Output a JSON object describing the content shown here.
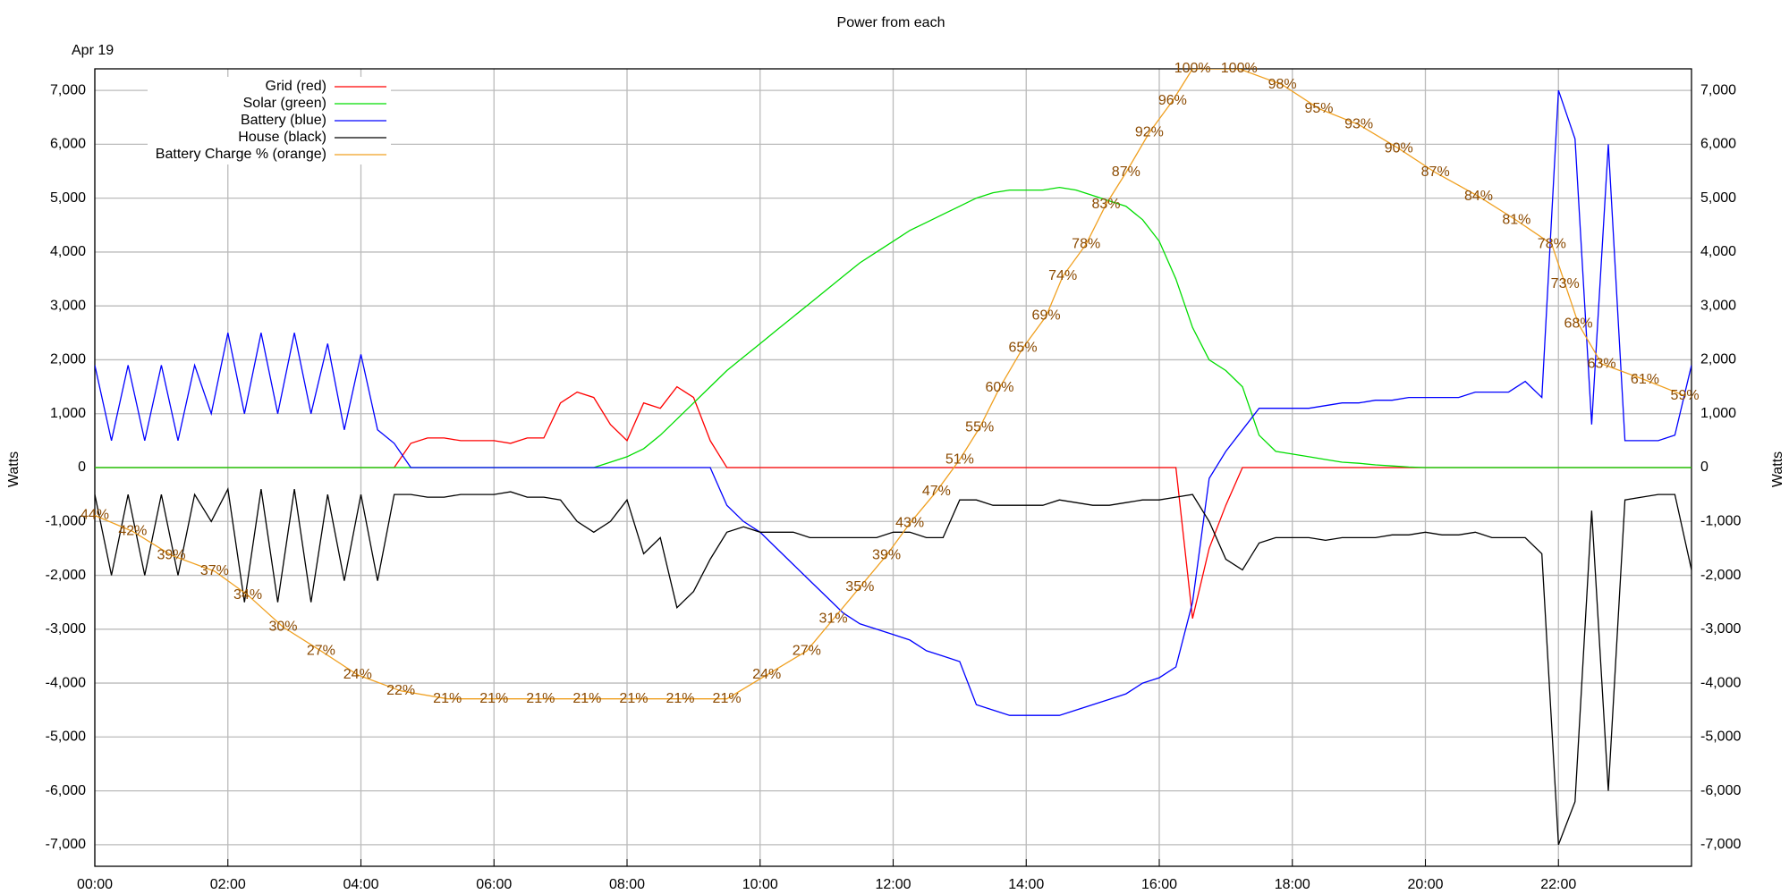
{
  "chart_data": {
    "type": "line",
    "title": "Power from each",
    "subtitle": "Apr 19",
    "y_label": "Watts",
    "y2_label": "Watts",
    "xlim": [
      0,
      24
    ],
    "ylim": [
      -7400,
      7400
    ],
    "y2lim": [
      0,
      100
    ],
    "grid": true,
    "legend": "upper left",
    "xticks": [
      {
        "value": 0,
        "label": "00:00"
      },
      {
        "value": 2,
        "label": "02:00"
      },
      {
        "value": 4,
        "label": "04:00"
      },
      {
        "value": 6,
        "label": "06:00"
      },
      {
        "value": 8,
        "label": "08:00"
      },
      {
        "value": 10,
        "label": "10:00"
      },
      {
        "value": 12,
        "label": "12:00"
      },
      {
        "value": 14,
        "label": "14:00"
      },
      {
        "value": 16,
        "label": "16:00"
      },
      {
        "value": 18,
        "label": "18:00"
      },
      {
        "value": 20,
        "label": "20:00"
      },
      {
        "value": 22,
        "label": "22:00"
      }
    ],
    "yticks": [
      {
        "value": -7000,
        "label": "-7,000"
      },
      {
        "value": -6000,
        "label": "-6,000"
      },
      {
        "value": -5000,
        "label": "-5,000"
      },
      {
        "value": -4000,
        "label": "-4,000"
      },
      {
        "value": -3000,
        "label": "-3,000"
      },
      {
        "value": -2000,
        "label": "-2,000"
      },
      {
        "value": -1000,
        "label": "-1,000"
      },
      0,
      {
        "value": 1000,
        "label": "1,000"
      },
      {
        "value": 2000,
        "label": "2,000"
      },
      {
        "value": 3000,
        "label": "3,000"
      },
      {
        "value": 4000,
        "label": "4,000"
      },
      {
        "value": 5000,
        "label": "5,000"
      },
      {
        "value": 6000,
        "label": "6,000"
      },
      {
        "value": 7000,
        "label": "7,000"
      }
    ],
    "x": [
      0,
      0.25,
      0.5,
      0.75,
      1,
      1.25,
      1.5,
      1.75,
      2,
      2.25,
      2.5,
      2.75,
      3,
      3.25,
      3.5,
      3.75,
      4,
      4.25,
      4.5,
      4.75,
      5,
      5.25,
      5.5,
      5.75,
      6,
      6.25,
      6.5,
      6.75,
      7,
      7.25,
      7.5,
      7.75,
      8,
      8.25,
      8.5,
      8.75,
      9,
      9.25,
      9.5,
      9.75,
      10,
      10.25,
      10.5,
      10.75,
      11,
      11.25,
      11.5,
      11.75,
      12,
      12.25,
      12.5,
      12.75,
      13,
      13.25,
      13.5,
      13.75,
      14,
      14.25,
      14.5,
      14.75,
      15,
      15.25,
      15.5,
      15.75,
      16,
      16.25,
      16.5,
      16.75,
      17,
      17.25,
      17.5,
      17.75,
      18,
      18.25,
      18.5,
      18.75,
      19,
      19.25,
      19.5,
      19.75,
      20,
      20.25,
      20.5,
      20.75,
      21,
      21.25,
      21.5,
      21.75,
      22,
      22.25,
      22.5,
      22.75,
      23,
      23.25,
      23.5,
      23.75,
      24
    ],
    "series": [
      {
        "name": "Grid (red)",
        "color": "#ff0000",
        "values": [
          0,
          0,
          0,
          0,
          0,
          0,
          0,
          0,
          0,
          0,
          0,
          0,
          0,
          0,
          0,
          0,
          0,
          0,
          0,
          450,
          550,
          550,
          500,
          500,
          500,
          450,
          550,
          550,
          1200,
          1400,
          1300,
          800,
          500,
          1200,
          1100,
          1500,
          1300,
          500,
          0,
          0,
          0,
          0,
          0,
          0,
          0,
          0,
          0,
          0,
          0,
          0,
          0,
          0,
          0,
          0,
          0,
          0,
          0,
          0,
          0,
          0,
          0,
          0,
          0,
          0,
          0,
          0,
          -2800,
          -1500,
          -700,
          0,
          0,
          0,
          0,
          0,
          0,
          0,
          0,
          0,
          0,
          0,
          0,
          0,
          0,
          0,
          0,
          0,
          0,
          0,
          0,
          0,
          0,
          0,
          0,
          0,
          0,
          0,
          0
        ]
      },
      {
        "name": "Solar (green)",
        "color": "#00dd00",
        "values": [
          0,
          0,
          0,
          0,
          0,
          0,
          0,
          0,
          0,
          0,
          0,
          0,
          0,
          0,
          0,
          0,
          0,
          0,
          0,
          0,
          0,
          0,
          0,
          0,
          0,
          0,
          0,
          0,
          0,
          0,
          0,
          100,
          200,
          350,
          600,
          900,
          1200,
          1500,
          1800,
          2050,
          2300,
          2550,
          2800,
          3050,
          3300,
          3550,
          3800,
          4000,
          4200,
          4400,
          4550,
          4700,
          4850,
          5000,
          5100,
          5150,
          5150,
          5150,
          5200,
          5150,
          5050,
          4950,
          4850,
          4600,
          4200,
          3500,
          2600,
          2000,
          1800,
          1500,
          600,
          300,
          250,
          200,
          150,
          100,
          80,
          50,
          30,
          10,
          0,
          0,
          0,
          0,
          0,
          0,
          0,
          0,
          0,
          0,
          0,
          0,
          0,
          0,
          0,
          0,
          0
        ]
      },
      {
        "name": "Battery (blue)",
        "color": "#0000ff",
        "values": [
          1900,
          500,
          1900,
          500,
          1900,
          500,
          1900,
          1000,
          2500,
          1000,
          2500,
          1000,
          2500,
          1000,
          2300,
          700,
          2100,
          700,
          450,
          0,
          0,
          0,
          0,
          0,
          0,
          0,
          0,
          0,
          0,
          0,
          0,
          0,
          0,
          0,
          0,
          0,
          0,
          0,
          -700,
          -1000,
          -1200,
          -1500,
          -1800,
          -2100,
          -2400,
          -2700,
          -2900,
          -3000,
          -3100,
          -3200,
          -3400,
          -3500,
          -3600,
          -4400,
          -4500,
          -4600,
          -4600,
          -4600,
          -4600,
          -4500,
          -4400,
          -4300,
          -4200,
          -4000,
          -3900,
          -3700,
          -2500,
          -200,
          300,
          700,
          1100,
          1100,
          1100,
          1100,
          1150,
          1200,
          1200,
          1250,
          1250,
          1300,
          1300,
          1300,
          1300,
          1400,
          1400,
          1400,
          1600,
          1300,
          7000,
          6100,
          800,
          6000,
          500,
          500,
          500,
          600,
          1900
        ]
      },
      {
        "name": "House (black)",
        "color": "#000000",
        "values": [
          -500,
          -2000,
          -500,
          -2000,
          -500,
          -2000,
          -500,
          -1000,
          -400,
          -2500,
          -400,
          -2500,
          -400,
          -2500,
          -500,
          -2100,
          -500,
          -2100,
          -500,
          -500,
          -550,
          -550,
          -500,
          -500,
          -500,
          -450,
          -550,
          -550,
          -600,
          -1000,
          -1200,
          -1000,
          -600,
          -1600,
          -1300,
          -2600,
          -2300,
          -1700,
          -1200,
          -1100,
          -1200,
          -1200,
          -1200,
          -1300,
          -1300,
          -1300,
          -1300,
          -1300,
          -1200,
          -1200,
          -1300,
          -1300,
          -600,
          -600,
          -700,
          -700,
          -700,
          -700,
          -600,
          -650,
          -700,
          -700,
          -650,
          -600,
          -600,
          -550,
          -500,
          -1000,
          -1700,
          -1900,
          -1400,
          -1300,
          -1300,
          -1300,
          -1350,
          -1300,
          -1300,
          -1300,
          -1250,
          -1250,
          -1200,
          -1250,
          -1250,
          -1200,
          -1300,
          -1300,
          -1300,
          -1600,
          -7000,
          -6200,
          -800,
          -6000,
          -600,
          -550,
          -500,
          -500,
          -1900
        ]
      },
      {
        "name": "Battery Charge % (orange)",
        "color": "#f0a020",
        "axis": "y2",
        "x": [
          0,
          0.57,
          1.15,
          1.8,
          2.3,
          2.83,
          3.4,
          3.95,
          4.6,
          5.3,
          6,
          6.7,
          7.4,
          8.1,
          8.8,
          9.5,
          10.1,
          10.7,
          11.1,
          11.5,
          11.9,
          12.25,
          12.65,
          13,
          13.3,
          13.6,
          13.95,
          14.3,
          14.55,
          14.9,
          15.2,
          15.5,
          15.85,
          16.2,
          16.5,
          17.2,
          17.85,
          18.4,
          19,
          19.6,
          20.15,
          20.8,
          21.37,
          21.9,
          22.1,
          22.3,
          22.65,
          23.3,
          23.9
        ],
        "values": [
          44,
          42,
          39,
          37,
          34,
          30,
          27,
          24,
          22,
          21,
          21,
          21,
          21,
          21,
          21,
          21,
          24,
          27,
          31,
          35,
          39,
          43,
          47,
          51,
          55,
          60,
          65,
          69,
          74,
          78,
          83,
          87,
          92,
          96,
          100,
          100,
          98,
          95,
          93,
          90,
          87,
          84,
          81,
          78,
          73,
          68,
          63,
          61,
          59
        ],
        "value_labels": [
          "44%",
          "42%",
          "39%",
          "37%",
          "34%",
          "30%",
          "27%",
          "24%",
          "22%",
          "21%",
          "21%",
          "21%",
          "21%",
          "21%",
          "21%",
          "21%",
          "24%",
          "27%",
          "31%",
          "35%",
          "39%",
          "43%",
          "47%",
          "51%",
          "55%",
          "60%",
          "65%",
          "69%",
          "74%",
          "78%",
          "83%",
          "87%",
          "92%",
          "96%",
          "100%",
          "100%",
          "98%",
          "95%",
          "93%",
          "90%",
          "87%",
          "84%",
          "81%",
          "78%",
          "73%",
          "68%",
          "63%",
          "61%",
          "59%"
        ]
      }
    ]
  }
}
